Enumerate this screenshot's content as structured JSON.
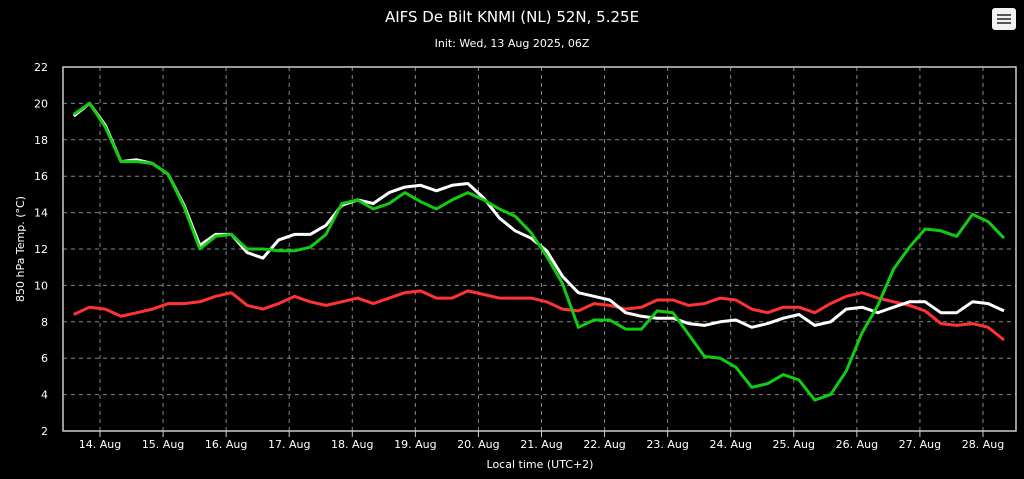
{
  "header": {
    "title": "AIFS De Bilt KNMI (NL) 52N, 5.25E",
    "subtitle": "Init: Wed, 13 Aug 2025, 06Z"
  },
  "menu": {
    "icon": "hamburger-menu-icon"
  },
  "chart_data": {
    "type": "line",
    "title": "AIFS De Bilt KNMI (NL) 52N, 5.25E",
    "subtitle": "Init: Wed, 13 Aug 2025, 06Z",
    "xlabel": "Local time (UTC+2)",
    "ylabel": "850 hPa Temp. (°C)",
    "ylim": [
      2,
      22
    ],
    "yticks": [
      "2",
      "4",
      "6",
      "8",
      "10",
      "12",
      "14",
      "16",
      "18",
      "20",
      "22"
    ],
    "xticks": [
      "14. Aug",
      "15. Aug",
      "16. Aug",
      "17. Aug",
      "18. Aug",
      "19. Aug",
      "20. Aug",
      "21. Aug",
      "22. Aug",
      "23. Aug",
      "24. Aug",
      "25. Aug",
      "26. Aug",
      "27. Aug",
      "28. Aug"
    ],
    "x_start": "2025-08-13 14:00",
    "x_step_hours": 6,
    "grid": true,
    "background": "#000000",
    "series": [
      {
        "color": "#ff3333",
        "values": [
          8.4,
          8.8,
          8.7,
          8.3,
          8.5,
          8.7,
          9.0,
          9.0,
          9.1,
          9.4,
          9.6,
          8.9,
          8.7,
          9.0,
          9.4,
          9.1,
          8.9,
          9.1,
          9.3,
          9.0,
          9.3,
          9.6,
          9.7,
          9.3,
          9.3,
          9.7,
          9.5,
          9.3,
          9.3,
          9.3,
          9.1,
          8.7,
          8.6,
          9.0,
          8.9,
          8.7,
          8.8,
          9.2,
          9.2,
          8.9,
          9.0,
          9.3,
          9.2,
          8.7,
          8.5,
          8.8,
          8.8,
          8.5,
          9.0,
          9.4,
          9.6,
          9.3,
          9.1,
          8.9,
          8.6,
          7.9,
          7.8,
          7.9,
          7.7,
          7.0
        ]
      },
      {
        "color": "#ffffff",
        "values": [
          19.3,
          20.0,
          18.8,
          16.8,
          16.9,
          16.7,
          16.1,
          14.4,
          12.2,
          12.8,
          12.8,
          11.8,
          11.5,
          12.5,
          12.8,
          12.8,
          13.3,
          14.4,
          14.7,
          14.5,
          15.1,
          15.4,
          15.5,
          15.2,
          15.5,
          15.6,
          14.8,
          13.7,
          13.0,
          12.6,
          11.9,
          10.5,
          9.6,
          9.4,
          9.2,
          8.5,
          8.3,
          8.2,
          8.2,
          7.9,
          7.8,
          8.0,
          8.1,
          7.7,
          7.9,
          8.2,
          8.4,
          7.8,
          8.0,
          8.7,
          8.8,
          8.5,
          8.8,
          9.1,
          9.1,
          8.5,
          8.5,
          9.1,
          9.0,
          8.6
        ]
      },
      {
        "color": "#11cc11",
        "values": [
          19.4,
          20.0,
          18.7,
          16.8,
          16.8,
          16.7,
          16.1,
          14.3,
          12.0,
          12.7,
          12.8,
          12.0,
          12.0,
          11.9,
          11.9,
          12.1,
          12.8,
          14.5,
          14.7,
          14.2,
          14.5,
          15.1,
          14.6,
          14.2,
          14.7,
          15.1,
          14.7,
          14.2,
          13.8,
          12.9,
          11.6,
          10.1,
          7.7,
          8.1,
          8.1,
          7.6,
          7.6,
          8.6,
          8.5,
          7.3,
          6.1,
          6.0,
          5.5,
          4.4,
          4.6,
          5.1,
          4.8,
          3.7,
          4.0,
          5.3,
          7.4,
          8.9,
          10.9,
          12.1,
          13.1,
          13.0,
          12.7,
          13.9,
          13.5,
          12.6
        ]
      }
    ]
  }
}
